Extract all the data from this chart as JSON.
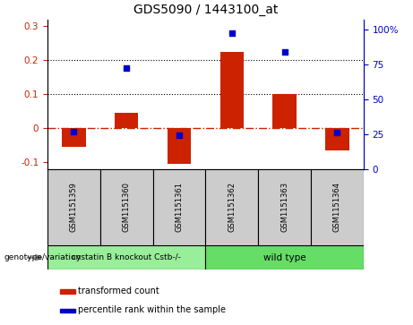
{
  "title": "GDS5090 / 1443100_at",
  "samples": [
    "GSM1151359",
    "GSM1151360",
    "GSM1151361",
    "GSM1151362",
    "GSM1151363",
    "GSM1151364"
  ],
  "bar_values": [
    -0.055,
    0.045,
    -0.105,
    0.225,
    0.1,
    -0.065
  ],
  "pct_values": [
    26.5,
    72,
    24,
    97,
    84,
    26
  ],
  "bar_color": "#cc2200",
  "scatter_color": "#0000cc",
  "ylim_left": [
    -0.12,
    0.32
  ],
  "ylim_right": [
    0,
    107
  ],
  "yticks_left": [
    -0.1,
    0.0,
    0.1,
    0.2,
    0.3
  ],
  "ytick_labels_left": [
    "-0.1",
    "0",
    "0.1",
    "0.2",
    "0.3"
  ],
  "yticks_right": [
    0,
    25,
    50,
    75,
    100
  ],
  "ytick_labels_right": [
    "0",
    "25",
    "50",
    "75",
    "100%"
  ],
  "dotted_lines": [
    0.1,
    0.2
  ],
  "zero_line_color": "#cc2200",
  "group1_label": "cystatin B knockout Cstb-/-",
  "group1_color": "#99ee99",
  "group2_label": "wild type",
  "group2_color": "#66dd66",
  "genotype_label": "genotype/variation",
  "legend_bar_label": "transformed count",
  "legend_scatter_label": "percentile rank within the sample",
  "bar_width": 0.45
}
